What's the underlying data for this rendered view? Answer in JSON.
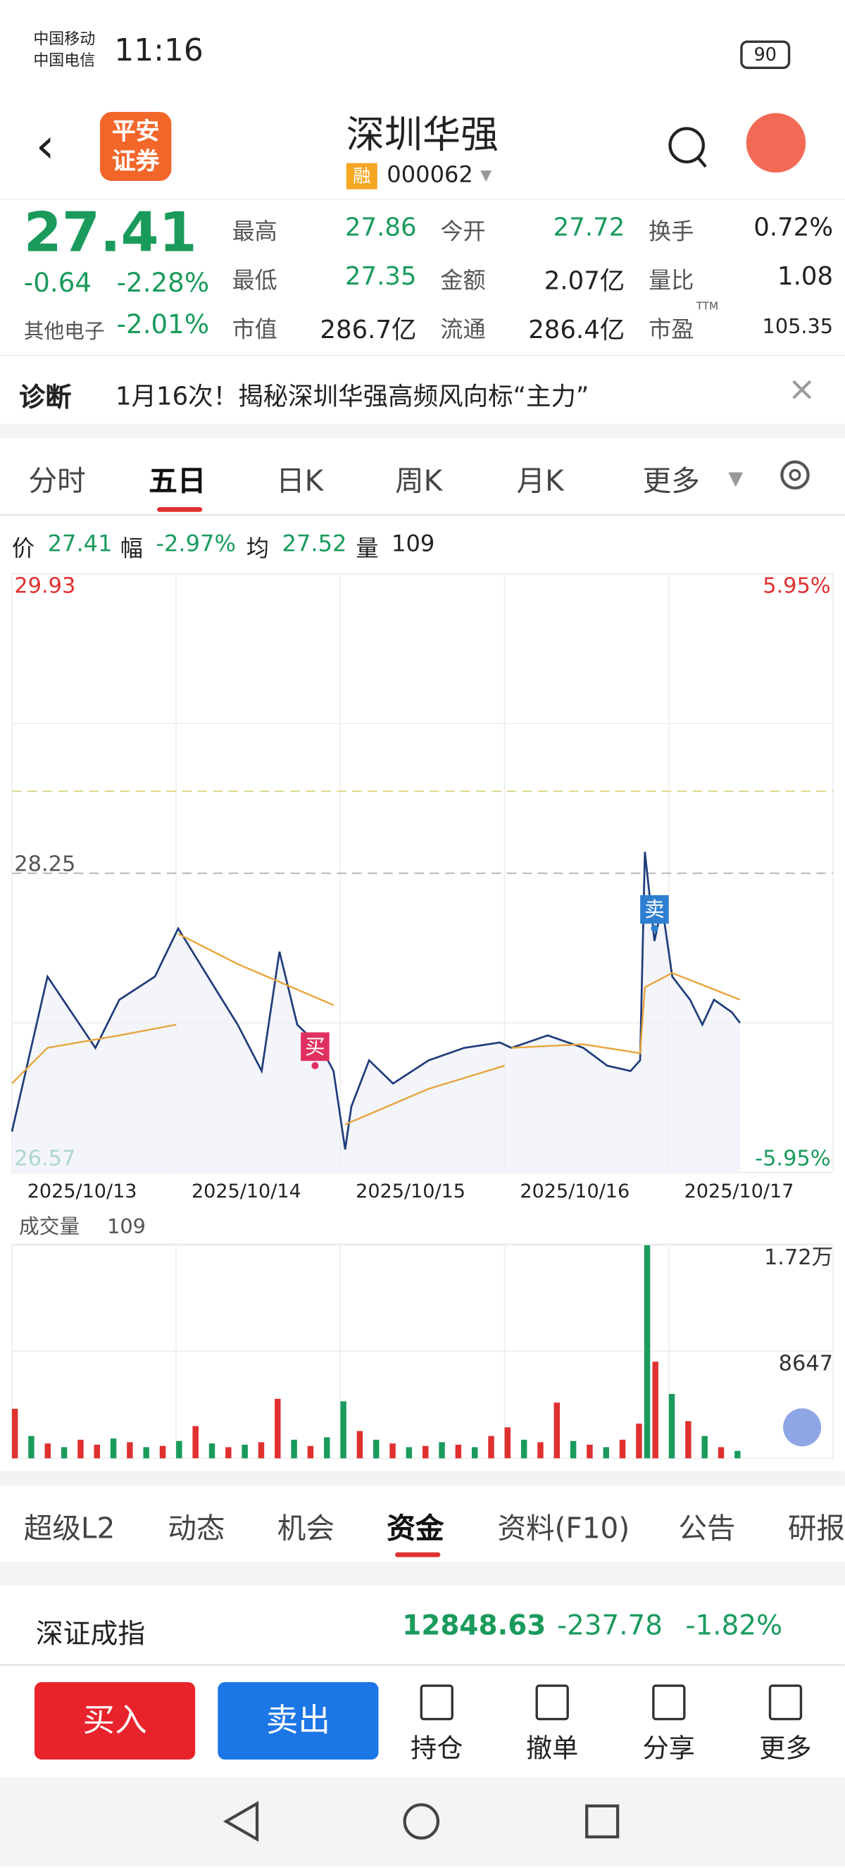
{
  "status_bar": {
    "carrier1": "中国移动",
    "carrier2": "中国电信",
    "time": "11:16",
    "battery": "90"
  },
  "header": {
    "logo": [
      "平安",
      "证券"
    ],
    "title": "深圳华强",
    "badge": "融",
    "code": "000062"
  },
  "quote": {
    "price": "27.41",
    "change": "-0.64",
    "pct": "-2.28%",
    "sector": "其他电子",
    "sector_pct": "-2.01%",
    "stats": [
      [
        "最高",
        "27.86"
      ],
      [
        "最低",
        "27.35"
      ],
      [
        "市值",
        "286.7亿"
      ],
      [
        "今开",
        "27.72"
      ],
      [
        "金额",
        "2.07亿"
      ],
      [
        "流通",
        "286.4亿"
      ],
      [
        "换手",
        "0.72%"
      ],
      [
        "量比",
        "1.08"
      ],
      [
        "市盈",
        "105.35"
      ]
    ],
    "ttm": "TTM"
  },
  "diagnosis": {
    "label": "诊断",
    "text": "1月16次！揭秘深圳华强高频风向标“主力”"
  },
  "tabs": [
    "分时",
    "五日",
    "日K",
    "周K",
    "月K",
    "更多"
  ],
  "info_bar": [
    "价",
    "27.41",
    "幅",
    "-2.97%",
    "均",
    "27.52",
    "量",
    "109"
  ],
  "chart_data": [
    {
      "type": "line",
      "categories": [
        "2025/10/13",
        "2025/10/14",
        "2025/10/15",
        "2025/10/16",
        "2025/10/17"
      ],
      "xlim": [
        0,
        1200
      ],
      "ylim": [
        26.57,
        29.93
      ],
      "yticks": [
        29.93,
        28.25,
        26.57
      ],
      "right_labels": [
        "5.95%",
        "-5.95%"
      ],
      "ref_line": 28.71,
      "series": [
        {
          "name": "价",
          "color": "#1f3c7a",
          "x": [
            0,
            52,
            122,
            157,
            209,
            243,
            296,
            330,
            365,
            391,
            417,
            452,
            470,
            487,
            496,
            522,
            557,
            609,
            661,
            713,
            730,
            783,
            835,
            870,
            904,
            918,
            922,
            925,
            939,
            950,
            965,
            991,
            1009,
            1026,
            1052,
            1064
          ],
          "values": [
            26.8,
            27.67,
            27.27,
            27.54,
            27.67,
            27.94,
            27.61,
            27.4,
            27.14,
            27.81,
            27.4,
            27.27,
            27.14,
            26.7,
            26.94,
            27.2,
            27.07,
            27.2,
            27.27,
            27.3,
            27.27,
            27.34,
            27.27,
            27.17,
            27.14,
            27.2,
            27.87,
            28.37,
            27.87,
            28.07,
            27.67,
            27.54,
            27.4,
            27.54,
            27.47,
            27.41
          ]
        },
        {
          "name": "均",
          "color": "#e8a33a",
          "x": [
            0,
            52,
            157,
            240,
            241,
            243,
            330,
            470,
            480,
            487,
            609,
            720,
            721,
            730,
            835,
            918,
            925,
            965,
            1064
          ],
          "values": [
            27.07,
            27.27,
            27.34,
            27.4,
            null,
            27.91,
            27.74,
            27.51,
            null,
            26.84,
            27.04,
            27.17,
            null,
            27.27,
            27.29,
            27.24,
            27.61,
            27.69,
            27.54
          ]
        }
      ],
      "markers": [
        {
          "label": "买",
          "x": 443,
          "value": 27.17,
          "color": "#e03060"
        },
        {
          "label": "卖",
          "x": 939,
          "value": 27.94,
          "color": "#2f7fd0"
        }
      ]
    },
    {
      "type": "bar",
      "title": "成交量",
      "current": "109",
      "xlim": [
        0,
        1200
      ],
      "ylim": [
        0,
        17294
      ],
      "yticks": [
        {
          "value": 17200,
          "label": "1.72万"
        },
        8647
      ],
      "x": [
        0,
        24,
        48,
        72,
        96,
        120,
        144,
        168,
        192,
        216,
        240,
        264,
        288,
        312,
        336,
        360,
        384,
        408,
        432,
        456,
        480,
        504,
        528,
        552,
        576,
        600,
        624,
        648,
        672,
        696,
        720,
        744,
        768,
        792,
        816,
        840,
        864,
        888,
        912,
        924,
        936,
        960,
        984,
        1008,
        1032,
        1056
      ],
      "values": [
        4000,
        1800,
        1200,
        900,
        1500,
        1100,
        1600,
        1300,
        900,
        1000,
        1400,
        2600,
        1200,
        900,
        1100,
        1300,
        4800,
        1500,
        1000,
        1700,
        4600,
        2200,
        1500,
        1200,
        900,
        1000,
        1300,
        1100,
        900,
        1800,
        2500,
        1500,
        1300,
        4500,
        1400,
        1100,
        900,
        1500,
        2800,
        17200,
        7800,
        5200,
        3000,
        1800,
        900,
        600
      ],
      "colors": [
        "#e03030",
        "#1a9b5c",
        "#e03030",
        "#1a9b5c",
        "#e03030",
        "#e03030",
        "#1a9b5c",
        "#e03030",
        "#1a9b5c",
        "#e03030",
        "#1a9b5c",
        "#e03030",
        "#1a9b5c",
        "#e03030",
        "#1a9b5c",
        "#e03030",
        "#e03030",
        "#1a9b5c",
        "#e03030",
        "#1a9b5c",
        "#1a9b5c",
        "#e03030",
        "#1a9b5c",
        "#e03030",
        "#1a9b5c",
        "#e03030",
        "#1a9b5c",
        "#e03030",
        "#1a9b5c",
        "#e03030",
        "#e03030",
        "#1a9b5c",
        "#e03030",
        "#e03030",
        "#1a9b5c",
        "#e03030",
        "#1a9b5c",
        "#e03030",
        "#e03030",
        "#1a9b5c",
        "#e03030",
        "#1a9b5c",
        "#e03030",
        "#1a9b5c",
        "#e03030",
        "#1a9b5c"
      ]
    }
  ],
  "bottom_tabs": [
    "超级L2",
    "动态",
    "机会",
    "资金",
    "资料(F10)",
    "公告",
    "研报"
  ],
  "index": {
    "name": "深证成指",
    "value": "12848.63",
    "change": "-237.78",
    "pct": "-1.82%"
  },
  "actions": {
    "buy": "买入",
    "sell": "卖出",
    "others": [
      "持仓",
      "撤单",
      "分享",
      "更多"
    ]
  }
}
